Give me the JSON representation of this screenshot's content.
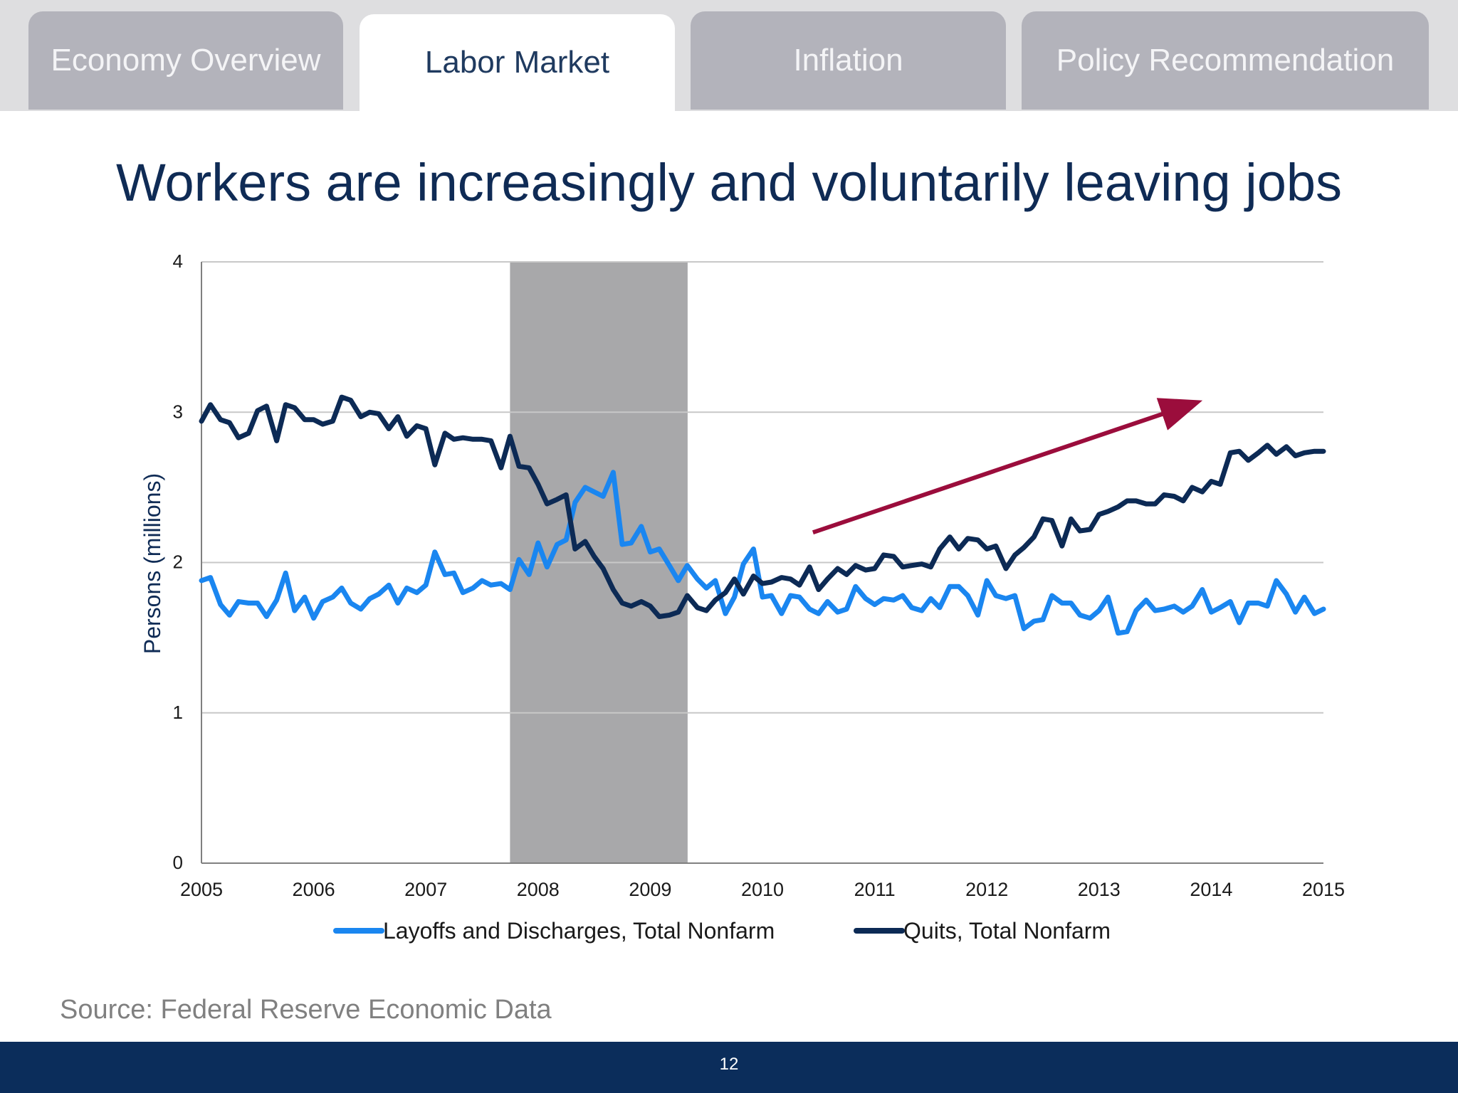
{
  "tabs": [
    {
      "label": "Economy Overview",
      "active": false
    },
    {
      "label": "Labor Market",
      "active": true
    },
    {
      "label": "Inflation",
      "active": false
    },
    {
      "label": "Policy Recommendation",
      "active": false
    }
  ],
  "slide_title": "Workers are increasingly and voluntarily leaving jobs",
  "source": "Source: Federal Reserve Economic Data",
  "page_number": "12",
  "colors": {
    "layoffs": "#1a86f0",
    "quits": "#0c2a55",
    "recession": "#a8a8aa",
    "arrow": "#9b0d3c",
    "gridline": "#c8c8c8"
  },
  "chart_data": {
    "type": "line",
    "title": "",
    "xlabel": "",
    "ylabel": "Persons (millions)",
    "xlim": [
      2005,
      2015
    ],
    "ylim": [
      0,
      4
    ],
    "x_ticks": [
      "2005",
      "2006",
      "2007",
      "2008",
      "2009",
      "2010",
      "2011",
      "2012",
      "2013",
      "2014",
      "2015"
    ],
    "y_ticks": [
      "0",
      "1",
      "2",
      "3",
      "4"
    ],
    "grid": "horizontal",
    "legend_position": "bottom",
    "recession_shading": {
      "start": 2007.75,
      "end": 2009.333
    },
    "annotation": {
      "type": "arrow",
      "from": [
        2010.45,
        2.2
      ],
      "to": [
        2013.85,
        3.06
      ]
    },
    "series": [
      {
        "name": "Layoffs and Discharges, Total Nonfarm",
        "points": [
          [
            2005.0,
            1.88
          ],
          [
            2005.08,
            1.9
          ],
          [
            2005.17,
            1.72
          ],
          [
            2005.25,
            1.65
          ],
          [
            2005.33,
            1.74
          ],
          [
            2005.42,
            1.73
          ],
          [
            2005.5,
            1.73
          ],
          [
            2005.58,
            1.64
          ],
          [
            2005.67,
            1.75
          ],
          [
            2005.75,
            1.93
          ],
          [
            2005.83,
            1.68
          ],
          [
            2005.92,
            1.77
          ],
          [
            2006.0,
            1.63
          ],
          [
            2006.08,
            1.74
          ],
          [
            2006.17,
            1.77
          ],
          [
            2006.25,
            1.83
          ],
          [
            2006.33,
            1.73
          ],
          [
            2006.42,
            1.69
          ],
          [
            2006.5,
            1.76
          ],
          [
            2006.58,
            1.79
          ],
          [
            2006.67,
            1.85
          ],
          [
            2006.75,
            1.73
          ],
          [
            2006.83,
            1.83
          ],
          [
            2006.92,
            1.8
          ],
          [
            2007.0,
            1.85
          ],
          [
            2007.08,
            2.07
          ],
          [
            2007.17,
            1.92
          ],
          [
            2007.25,
            1.93
          ],
          [
            2007.33,
            1.8
          ],
          [
            2007.42,
            1.83
          ],
          [
            2007.5,
            1.88
          ],
          [
            2007.58,
            1.85
          ],
          [
            2007.67,
            1.86
          ],
          [
            2007.75,
            1.82
          ],
          [
            2007.83,
            2.02
          ],
          [
            2007.92,
            1.92
          ],
          [
            2008.0,
            2.13
          ],
          [
            2008.08,
            1.97
          ],
          [
            2008.17,
            2.12
          ],
          [
            2008.25,
            2.15
          ],
          [
            2008.33,
            2.4
          ],
          [
            2008.42,
            2.5
          ],
          [
            2008.5,
            2.47
          ],
          [
            2008.58,
            2.44
          ],
          [
            2008.67,
            2.6
          ],
          [
            2008.75,
            2.12
          ],
          [
            2008.83,
            2.13
          ],
          [
            2008.92,
            2.24
          ],
          [
            2009.0,
            2.07
          ],
          [
            2009.08,
            2.09
          ],
          [
            2009.17,
            1.98
          ],
          [
            2009.25,
            1.88
          ],
          [
            2009.33,
            1.98
          ],
          [
            2009.42,
            1.89
          ],
          [
            2009.5,
            1.83
          ],
          [
            2009.58,
            1.88
          ],
          [
            2009.67,
            1.66
          ],
          [
            2009.75,
            1.77
          ],
          [
            2009.83,
            1.99
          ],
          [
            2009.92,
            2.09
          ],
          [
            2010.0,
            1.77
          ],
          [
            2010.08,
            1.78
          ],
          [
            2010.17,
            1.66
          ],
          [
            2010.25,
            1.78
          ],
          [
            2010.33,
            1.77
          ],
          [
            2010.42,
            1.69
          ],
          [
            2010.5,
            1.66
          ],
          [
            2010.58,
            1.74
          ],
          [
            2010.67,
            1.67
          ],
          [
            2010.75,
            1.69
          ],
          [
            2010.83,
            1.84
          ],
          [
            2010.92,
            1.76
          ],
          [
            2011.0,
            1.72
          ],
          [
            2011.08,
            1.76
          ],
          [
            2011.17,
            1.75
          ],
          [
            2011.25,
            1.78
          ],
          [
            2011.33,
            1.7
          ],
          [
            2011.42,
            1.68
          ],
          [
            2011.5,
            1.76
          ],
          [
            2011.58,
            1.7
          ],
          [
            2011.67,
            1.84
          ],
          [
            2011.75,
            1.84
          ],
          [
            2011.83,
            1.78
          ],
          [
            2011.92,
            1.65
          ],
          [
            2012.0,
            1.88
          ],
          [
            2012.08,
            1.78
          ],
          [
            2012.17,
            1.76
          ],
          [
            2012.25,
            1.78
          ],
          [
            2012.33,
            1.56
          ],
          [
            2012.42,
            1.61
          ],
          [
            2012.5,
            1.62
          ],
          [
            2012.58,
            1.78
          ],
          [
            2012.67,
            1.73
          ],
          [
            2012.75,
            1.73
          ],
          [
            2012.83,
            1.65
          ],
          [
            2012.92,
            1.63
          ],
          [
            2013.0,
            1.68
          ],
          [
            2013.08,
            1.77
          ],
          [
            2013.17,
            1.53
          ],
          [
            2013.25,
            1.54
          ],
          [
            2013.33,
            1.68
          ],
          [
            2013.42,
            1.75
          ],
          [
            2013.5,
            1.68
          ],
          [
            2013.58,
            1.69
          ],
          [
            2013.67,
            1.71
          ],
          [
            2013.75,
            1.67
          ],
          [
            2013.83,
            1.71
          ],
          [
            2013.92,
            1.82
          ],
          [
            2014.0,
            1.67
          ],
          [
            2014.08,
            1.7
          ],
          [
            2014.17,
            1.74
          ],
          [
            2014.25,
            1.6
          ],
          [
            2014.33,
            1.73
          ],
          [
            2014.42,
            1.73
          ],
          [
            2014.5,
            1.71
          ],
          [
            2014.58,
            1.88
          ],
          [
            2014.67,
            1.79
          ],
          [
            2014.75,
            1.67
          ],
          [
            2014.83,
            1.77
          ],
          [
            2014.92,
            1.66
          ],
          [
            2015.0,
            1.69
          ]
        ]
      },
      {
        "name": "Quits, Total Nonfarm",
        "points": [
          [
            2005.0,
            2.94
          ],
          [
            2005.08,
            3.05
          ],
          [
            2005.17,
            2.95
          ],
          [
            2005.25,
            2.93
          ],
          [
            2005.33,
            2.83
          ],
          [
            2005.42,
            2.86
          ],
          [
            2005.5,
            3.01
          ],
          [
            2005.58,
            3.04
          ],
          [
            2005.67,
            2.81
          ],
          [
            2005.75,
            3.05
          ],
          [
            2005.83,
            3.03
          ],
          [
            2005.92,
            2.95
          ],
          [
            2006.0,
            2.95
          ],
          [
            2006.08,
            2.92
          ],
          [
            2006.17,
            2.94
          ],
          [
            2006.25,
            3.1
          ],
          [
            2006.33,
            3.08
          ],
          [
            2006.42,
            2.97
          ],
          [
            2006.5,
            3.0
          ],
          [
            2006.58,
            2.99
          ],
          [
            2006.67,
            2.89
          ],
          [
            2006.75,
            2.97
          ],
          [
            2006.83,
            2.84
          ],
          [
            2006.92,
            2.91
          ],
          [
            2007.0,
            2.89
          ],
          [
            2007.08,
            2.65
          ],
          [
            2007.17,
            2.86
          ],
          [
            2007.25,
            2.82
          ],
          [
            2007.33,
            2.83
          ],
          [
            2007.42,
            2.82
          ],
          [
            2007.5,
            2.82
          ],
          [
            2007.58,
            2.81
          ],
          [
            2007.67,
            2.63
          ],
          [
            2007.75,
            2.84
          ],
          [
            2007.83,
            2.64
          ],
          [
            2007.92,
            2.63
          ],
          [
            2008.0,
            2.52
          ],
          [
            2008.08,
            2.39
          ],
          [
            2008.17,
            2.42
          ],
          [
            2008.25,
            2.45
          ],
          [
            2008.33,
            2.09
          ],
          [
            2008.42,
            2.14
          ],
          [
            2008.5,
            2.04
          ],
          [
            2008.58,
            1.96
          ],
          [
            2008.67,
            1.82
          ],
          [
            2008.75,
            1.73
          ],
          [
            2008.83,
            1.71
          ],
          [
            2008.92,
            1.74
          ],
          [
            2009.0,
            1.71
          ],
          [
            2009.08,
            1.64
          ],
          [
            2009.17,
            1.65
          ],
          [
            2009.25,
            1.67
          ],
          [
            2009.33,
            1.78
          ],
          [
            2009.42,
            1.7
          ],
          [
            2009.5,
            1.68
          ],
          [
            2009.58,
            1.75
          ],
          [
            2009.67,
            1.8
          ],
          [
            2009.75,
            1.89
          ],
          [
            2009.83,
            1.79
          ],
          [
            2009.92,
            1.91
          ],
          [
            2010.0,
            1.86
          ],
          [
            2010.08,
            1.87
          ],
          [
            2010.17,
            1.9
          ],
          [
            2010.25,
            1.89
          ],
          [
            2010.33,
            1.85
          ],
          [
            2010.42,
            1.97
          ],
          [
            2010.5,
            1.82
          ],
          [
            2010.58,
            1.89
          ],
          [
            2010.67,
            1.96
          ],
          [
            2010.75,
            1.92
          ],
          [
            2010.83,
            1.98
          ],
          [
            2010.92,
            1.95
          ],
          [
            2011.0,
            1.96
          ],
          [
            2011.08,
            2.05
          ],
          [
            2011.17,
            2.04
          ],
          [
            2011.25,
            1.97
          ],
          [
            2011.33,
            1.98
          ],
          [
            2011.42,
            1.99
          ],
          [
            2011.5,
            1.97
          ],
          [
            2011.58,
            2.09
          ],
          [
            2011.67,
            2.17
          ],
          [
            2011.75,
            2.09
          ],
          [
            2011.83,
            2.16
          ],
          [
            2011.92,
            2.15
          ],
          [
            2012.0,
            2.09
          ],
          [
            2012.08,
            2.11
          ],
          [
            2012.17,
            1.96
          ],
          [
            2012.25,
            2.05
          ],
          [
            2012.33,
            2.1
          ],
          [
            2012.42,
            2.17
          ],
          [
            2012.5,
            2.29
          ],
          [
            2012.58,
            2.28
          ],
          [
            2012.67,
            2.11
          ],
          [
            2012.75,
            2.29
          ],
          [
            2012.83,
            2.21
          ],
          [
            2012.92,
            2.22
          ],
          [
            2013.0,
            2.32
          ],
          [
            2013.08,
            2.34
          ],
          [
            2013.17,
            2.37
          ],
          [
            2013.25,
            2.41
          ],
          [
            2013.33,
            2.41
          ],
          [
            2013.42,
            2.39
          ],
          [
            2013.5,
            2.39
          ],
          [
            2013.58,
            2.45
          ],
          [
            2013.67,
            2.44
          ],
          [
            2013.75,
            2.41
          ],
          [
            2013.83,
            2.5
          ],
          [
            2013.92,
            2.47
          ],
          [
            2014.0,
            2.54
          ],
          [
            2014.08,
            2.52
          ],
          [
            2014.17,
            2.73
          ],
          [
            2014.25,
            2.74
          ],
          [
            2014.33,
            2.68
          ],
          [
            2014.42,
            2.73
          ],
          [
            2014.5,
            2.78
          ],
          [
            2014.58,
            2.72
          ],
          [
            2014.67,
            2.77
          ],
          [
            2014.75,
            2.71
          ],
          [
            2014.83,
            2.73
          ],
          [
            2014.92,
            2.74
          ],
          [
            2015.0,
            2.74
          ]
        ]
      }
    ]
  }
}
